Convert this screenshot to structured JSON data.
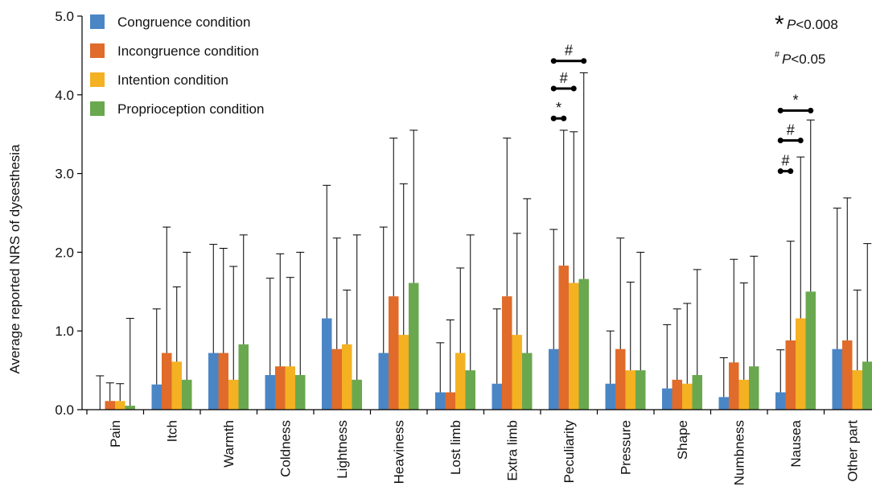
{
  "chart_data": {
    "type": "bar",
    "title": "",
    "xlabel": "",
    "ylabel": "Average reported NRS of dysesthesia",
    "ylim": [
      0,
      5
    ],
    "yticks": [
      "0.0",
      "1.0",
      "2.0",
      "3.0",
      "4.0",
      "5.0"
    ],
    "grid": false,
    "legend_position": "top-left",
    "error_bars": "upper",
    "categories": [
      "Pain",
      "Itch",
      "Warmth",
      "Coldness",
      "Lightness",
      "Heaviness",
      "Lost limb",
      "Extra limb",
      "Peculiarity",
      "Pressure",
      "Shape",
      "Numbness",
      "Nausea",
      "Other part"
    ],
    "series": [
      {
        "name": "Congruence condition",
        "color": "#4a86c6",
        "values": [
          0.0,
          0.32,
          0.72,
          0.44,
          1.16,
          0.72,
          0.22,
          0.33,
          0.77,
          0.33,
          0.27,
          0.16,
          0.22,
          0.77
        ],
        "error_upper": [
          0.43,
          1.28,
          2.1,
          1.67,
          2.85,
          2.32,
          0.85,
          1.28,
          2.29,
          1.0,
          1.08,
          0.66,
          0.76,
          2.56
        ]
      },
      {
        "name": "Incongruence condition",
        "color": "#e06b2a",
        "values": [
          0.11,
          0.72,
          0.72,
          0.55,
          0.77,
          1.44,
          0.22,
          1.44,
          1.83,
          0.77,
          0.38,
          0.6,
          0.88,
          0.88
        ],
        "error_upper": [
          0.34,
          2.32,
          2.05,
          1.98,
          2.18,
          3.45,
          1.14,
          3.45,
          3.55,
          2.18,
          1.28,
          1.91,
          2.14,
          2.69
        ]
      },
      {
        "name": "Intention condition",
        "color": "#f4b122",
        "values": [
          0.11,
          0.61,
          0.38,
          0.55,
          0.83,
          0.95,
          0.72,
          0.95,
          1.61,
          0.5,
          0.33,
          0.38,
          1.16,
          0.5
        ],
        "error_upper": [
          0.33,
          1.56,
          1.82,
          1.68,
          1.52,
          2.87,
          1.8,
          2.24,
          3.53,
          1.62,
          1.35,
          1.61,
          3.21,
          1.52
        ]
      },
      {
        "name": "Proprioception condition",
        "color": "#6aa84f",
        "values": [
          0.05,
          0.38,
          0.83,
          0.44,
          0.38,
          1.61,
          0.5,
          0.72,
          1.66,
          0.5,
          0.44,
          0.55,
          1.5,
          0.61
        ],
        "error_upper": [
          1.16,
          2.0,
          2.22,
          2.0,
          2.22,
          3.55,
          2.22,
          2.68,
          4.28,
          2.0,
          1.78,
          1.95,
          3.68,
          2.11
        ]
      }
    ],
    "significance_note_star": "P<0.008",
    "significance_note_hash": "P<0.05",
    "brackets": [
      {
        "category": "Peculiarity",
        "from_series": 0,
        "to_series": 1,
        "level": 3.7,
        "symbol": "*"
      },
      {
        "category": "Peculiarity",
        "from_series": 0,
        "to_series": 2,
        "level": 4.08,
        "symbol": "#"
      },
      {
        "category": "Peculiarity",
        "from_series": 0,
        "to_series": 3,
        "level": 4.43,
        "symbol": "#"
      },
      {
        "category": "Nausea",
        "from_series": 0,
        "to_series": 1,
        "level": 3.03,
        "symbol": "#"
      },
      {
        "category": "Nausea",
        "from_series": 0,
        "to_series": 2,
        "level": 3.42,
        "symbol": "#"
      },
      {
        "category": "Nausea",
        "from_series": 0,
        "to_series": 3,
        "level": 3.8,
        "symbol": "*"
      }
    ]
  }
}
